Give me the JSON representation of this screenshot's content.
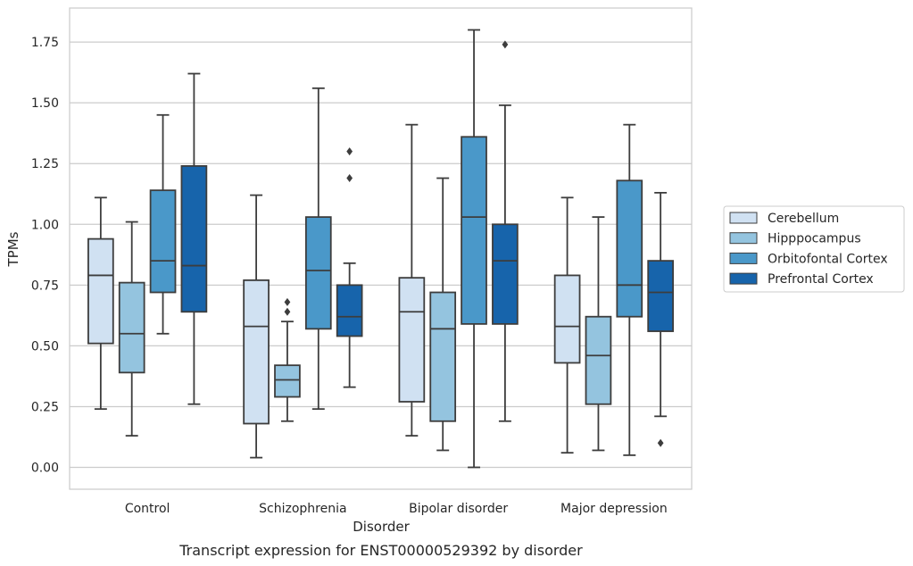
{
  "chart_data": {
    "type": "box",
    "title": "",
    "caption": "Transcript expression for ENST00000529392 by disorder",
    "xlabel": "Disorder",
    "ylabel": "TPMs",
    "ylim": [
      -0.09,
      1.89
    ],
    "yticks": [
      0.0,
      0.25,
      0.5,
      0.75,
      1.0,
      1.25,
      1.5,
      1.75
    ],
    "ytick_labels": [
      "0.00",
      "0.25",
      "0.50",
      "0.75",
      "1.00",
      "1.25",
      "1.50",
      "1.75"
    ],
    "grid": "horizontal",
    "legend_position": "right",
    "categories": [
      "Control",
      "Schizophrenia",
      "Bipolar disorder",
      "Major depression"
    ],
    "series": [
      {
        "name": "Cerebellum",
        "color": "#d0e1f2",
        "boxes": [
          {
            "whislo": 0.24,
            "q1": 0.51,
            "med": 0.79,
            "q3": 0.94,
            "whishi": 1.11,
            "fliers": []
          },
          {
            "whislo": 0.04,
            "q1": 0.18,
            "med": 0.58,
            "q3": 0.77,
            "whishi": 1.12,
            "fliers": []
          },
          {
            "whislo": 0.13,
            "q1": 0.27,
            "med": 0.64,
            "q3": 0.78,
            "whishi": 1.41,
            "fliers": []
          },
          {
            "whislo": 0.06,
            "q1": 0.43,
            "med": 0.58,
            "q3": 0.79,
            "whishi": 1.11,
            "fliers": []
          }
        ]
      },
      {
        "name": "Hipppocampus",
        "color": "#94c4df",
        "boxes": [
          {
            "whislo": 0.13,
            "q1": 0.39,
            "med": 0.55,
            "q3": 0.76,
            "whishi": 1.01,
            "fliers": []
          },
          {
            "whislo": 0.19,
            "q1": 0.29,
            "med": 0.36,
            "q3": 0.42,
            "whishi": 0.6,
            "fliers": [
              0.64,
              0.68
            ]
          },
          {
            "whislo": 0.07,
            "q1": 0.19,
            "med": 0.57,
            "q3": 0.72,
            "whishi": 1.19,
            "fliers": []
          },
          {
            "whislo": 0.07,
            "q1": 0.26,
            "med": 0.46,
            "q3": 0.62,
            "whishi": 1.03,
            "fliers": []
          }
        ]
      },
      {
        "name": "Orbitofontal Cortex",
        "color": "#4a98c9",
        "boxes": [
          {
            "whislo": 0.55,
            "q1": 0.72,
            "med": 0.85,
            "q3": 1.14,
            "whishi": 1.45,
            "fliers": []
          },
          {
            "whislo": 0.24,
            "q1": 0.57,
            "med": 0.81,
            "q3": 1.03,
            "whishi": 1.56,
            "fliers": []
          },
          {
            "whislo": 0.0,
            "q1": 0.59,
            "med": 1.03,
            "q3": 1.36,
            "whishi": 1.8,
            "fliers": []
          },
          {
            "whislo": 0.05,
            "q1": 0.62,
            "med": 0.75,
            "q3": 1.18,
            "whishi": 1.41,
            "fliers": []
          }
        ]
      },
      {
        "name": "Prefrontal Cortex",
        "color": "#1764ab",
        "boxes": [
          {
            "whislo": 0.26,
            "q1": 0.64,
            "med": 0.83,
            "q3": 1.24,
            "whishi": 1.62,
            "fliers": []
          },
          {
            "whislo": 0.33,
            "q1": 0.54,
            "med": 0.62,
            "q3": 0.75,
            "whishi": 0.84,
            "fliers": [
              1.19,
              1.3
            ]
          },
          {
            "whislo": 0.19,
            "q1": 0.59,
            "med": 0.85,
            "q3": 1.0,
            "whishi": 1.49,
            "fliers": [
              1.74
            ]
          },
          {
            "whislo": 0.21,
            "q1": 0.56,
            "med": 0.72,
            "q3": 0.85,
            "whishi": 1.13,
            "fliers": [
              0.1
            ]
          }
        ]
      }
    ]
  }
}
